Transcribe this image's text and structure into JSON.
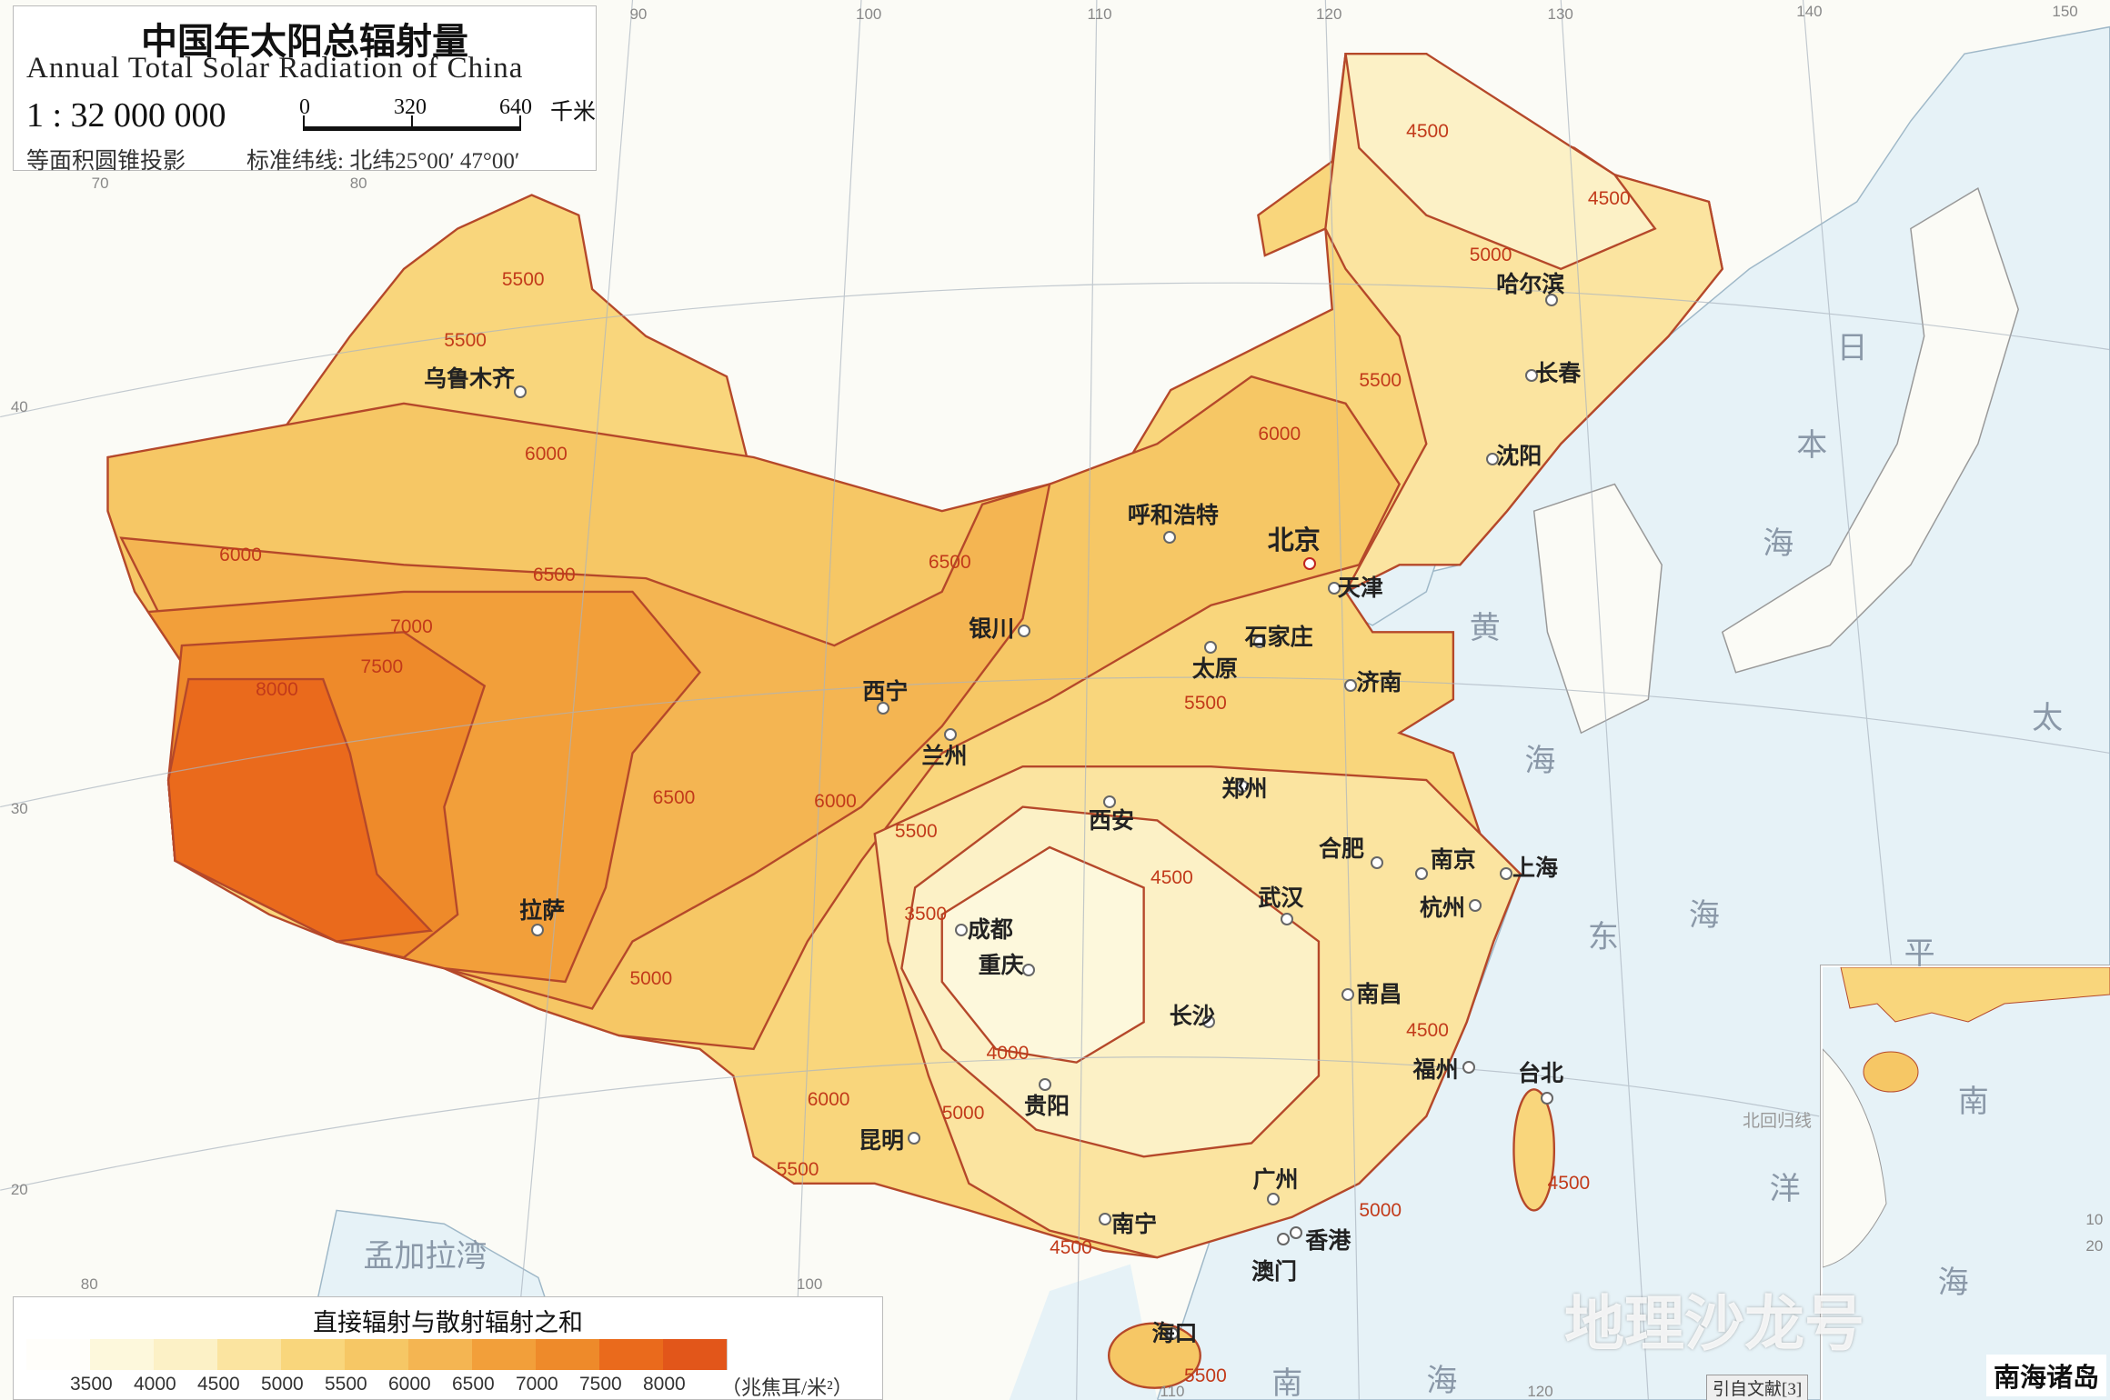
{
  "header": {
    "title_cn": "中国年太阳总辐射量",
    "title_en": "Annual Total Solar Radiation of China",
    "scale": "1 : 32 000 000",
    "scale_bar": {
      "ticks": [
        "0",
        "320",
        "640"
      ],
      "unit": "千米"
    },
    "projection": "等面积圆锥投影",
    "standard_parallels": "标准纬线: 北纬25°00′ 47°00′"
  },
  "legend": {
    "title": "直接辐射与散射辐射之和",
    "values": [
      "3500",
      "4000",
      "4500",
      "5000",
      "5500",
      "6000",
      "6500",
      "7000",
      "7500",
      "8000"
    ],
    "unit": "（兆焦耳/米²）",
    "colors": [
      "#fffefa",
      "#fdf8dc",
      "#fcf1c6",
      "#fbe4a0",
      "#f9d67c",
      "#f6c765",
      "#f4b552",
      "#f29f3a",
      "#ee8a2a",
      "#ea6a1c",
      "#e2561a"
    ]
  },
  "cities": [
    {
      "name": "乌鲁木齐"
    },
    {
      "name": "拉萨"
    },
    {
      "name": "西宁"
    },
    {
      "name": "兰州"
    },
    {
      "name": "银川"
    },
    {
      "name": "呼和浩特"
    },
    {
      "name": "北京",
      "capital": true
    },
    {
      "name": "天津"
    },
    {
      "name": "石家庄"
    },
    {
      "name": "太原"
    },
    {
      "name": "济南"
    },
    {
      "name": "郑州"
    },
    {
      "name": "西安"
    },
    {
      "name": "成都"
    },
    {
      "name": "重庆"
    },
    {
      "name": "贵阳"
    },
    {
      "name": "昆明"
    },
    {
      "name": "南宁"
    },
    {
      "name": "广州"
    },
    {
      "name": "香港"
    },
    {
      "name": "澳门"
    },
    {
      "name": "长沙"
    },
    {
      "name": "武汉"
    },
    {
      "name": "南昌"
    },
    {
      "name": "合肥"
    },
    {
      "name": "南京"
    },
    {
      "name": "上海"
    },
    {
      "name": "杭州"
    },
    {
      "name": "福州"
    },
    {
      "name": "台北"
    },
    {
      "name": "海口"
    },
    {
      "name": "哈尔滨"
    },
    {
      "name": "长春"
    },
    {
      "name": "沈阳"
    }
  ],
  "isoline_labels": [
    "4500",
    "4500",
    "5000",
    "5500",
    "5500",
    "6000",
    "6000",
    "6500",
    "7000",
    "7500",
    "8000",
    "5500",
    "6000",
    "6500",
    "5500",
    "6500",
    "6000",
    "5500",
    "4500",
    "3500",
    "5000",
    "4000",
    "5000",
    "6000",
    "5500",
    "4500",
    "5000",
    "4500",
    "4500",
    "5500"
  ],
  "seas": [
    "黄",
    "海",
    "东",
    "海",
    "南",
    "海",
    "太",
    "平",
    "洋",
    "日",
    "本",
    "海",
    "孟加拉湾",
    "南",
    "海"
  ],
  "grid_labels": [
    "90",
    "100",
    "110",
    "120",
    "130",
    "140",
    "150",
    "70",
    "80",
    "40",
    "30",
    "20",
    "80",
    "100",
    "110",
    "120",
    "20",
    "10"
  ],
  "tropic_label": "北回归线",
  "inset": {
    "name": "南海诸岛"
  },
  "citation": "引自文献[3]",
  "watermark": "地理沙龙号"
}
